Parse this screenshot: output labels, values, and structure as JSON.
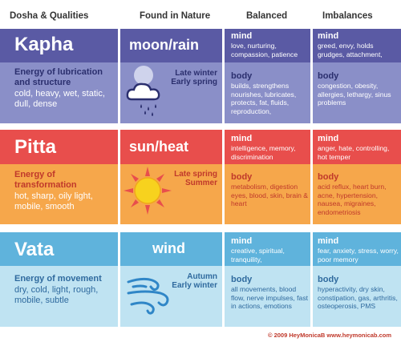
{
  "headers": {
    "dosha": "Dosha & Qualities",
    "nature": "Found in Nature",
    "balanced": "Balanced",
    "imbalances": "Imbalances"
  },
  "kapha": {
    "name": "Kapha",
    "quality_title": "Energy of lubrication and structure",
    "qualities": "cold, heavy, wet, static, dull, dense",
    "nature": "moon/rain",
    "season": [
      "Late winter",
      "Early spring"
    ],
    "balanced": {
      "mind_title": "mind",
      "mind": "love, nurturing, compassion, patience",
      "body_title": "body",
      "body": "builds, strengthens nourishes, lubricates, protects, fat, fluids, reproduction,"
    },
    "imbalances": {
      "mind_title": "mind",
      "mind": "greed, envy, holds grudges, attachment,",
      "body_title": "body",
      "body": "congestion, obesity, allergies, lethargy, sinus problems"
    }
  },
  "pitta": {
    "name": "Pitta",
    "quality_title": "Energy of transformation",
    "qualities": "hot, sharp, oily light, mobile, smooth",
    "nature": "sun/heat",
    "season": [
      "Late spring",
      "Summer"
    ],
    "balanced": {
      "mind_title": "mind",
      "mind": "intelligence, memory, discrimination",
      "body_title": "body",
      "body": "metabolism, digestion eyes, blood, skin, brain & heart"
    },
    "imbalances": {
      "mind_title": "mind",
      "mind": "anger, hate, controlling, hot temper",
      "body_title": "body",
      "body": "acid reflux, heart burn, acne, hypertension, nausea, migraines, endometriosis"
    }
  },
  "vata": {
    "name": "Vata",
    "quality_title": "Energy of movement",
    "qualities": "dry, cold, light, rough, mobile, subtle",
    "nature": "wind",
    "season": [
      "Autumn",
      "Early winter"
    ],
    "balanced": {
      "mind_title": "mind",
      "mind": "creative, spiritual, tranquility,",
      "body_title": "body",
      "body": "all movements, blood flow, nerve impulses, fast in actions, emotions"
    },
    "imbalances": {
      "mind_title": "mind",
      "mind": "fear, anxiety, stress, worry, poor memory",
      "body_title": "body",
      "body": "hyperactivity, dry skin, constipation, gas, arthritis, osteoperosis, PMS"
    }
  },
  "footer": "© 2009 HeyMonicaB  www.heymonicab.com",
  "colors": {
    "kapha_dark": "#5a5aa4",
    "kapha_light": "#8a8fc8",
    "pitta_dark": "#e84e4c",
    "pitta_light": "#f6a74b",
    "vata_dark": "#5fb3dc",
    "vata_light": "#bfe3f2"
  }
}
